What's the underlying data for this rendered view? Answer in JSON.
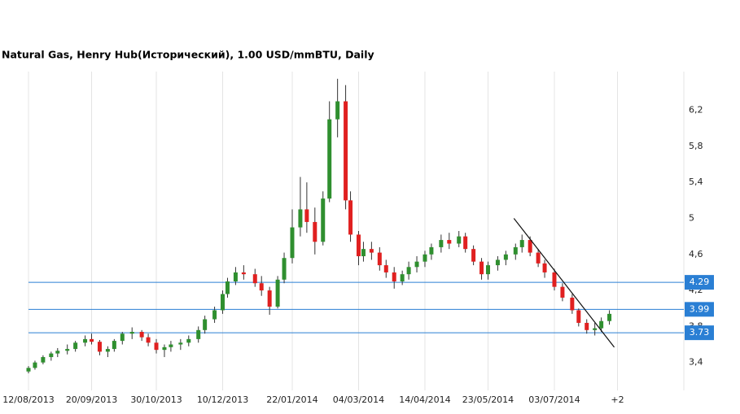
{
  "chart_data": {
    "type": "candlestick",
    "title": "Natural Gas, Henry Hub(Исторический), 1.00 USD/mmBTU, Daily",
    "x": [
      "12/08/2013",
      "16/08/2013",
      "21/08/2013",
      "26/08/2013",
      "30/08/2013",
      "05/09/2013",
      "10/09/2013",
      "16/09/2013",
      "20/09/2013",
      "25/09/2013",
      "30/09/2013",
      "04/10/2013",
      "09/10/2013",
      "15/10/2013",
      "21/10/2013",
      "25/10/2013",
      "30/10/2013",
      "04/11/2013",
      "08/11/2013",
      "14/11/2013",
      "19/11/2013",
      "25/11/2013",
      "29/11/2013",
      "05/12/2013",
      "10/12/2013",
      "13/12/2013",
      "18/12/2013",
      "23/12/2013",
      "30/12/2013",
      "03/01/2014",
      "08/01/2014",
      "13/01/2014",
      "17/01/2014",
      "22/01/2014",
      "27/01/2014",
      "31/01/2014",
      "05/02/2014",
      "10/02/2014",
      "14/02/2014",
      "19/02/2014",
      "24/02/2014",
      "27/02/2014",
      "04/03/2014",
      "07/03/2014",
      "12/03/2014",
      "17/03/2014",
      "21/03/2014",
      "26/03/2014",
      "31/03/2014",
      "04/04/2014",
      "09/04/2014",
      "14/04/2014",
      "18/04/2014",
      "24/04/2014",
      "29/04/2014",
      "05/05/2014",
      "09/05/2014",
      "14/05/2014",
      "19/05/2014",
      "23/05/2014",
      "29/05/2014",
      "03/06/2014",
      "09/06/2014",
      "13/06/2014",
      "18/06/2014",
      "23/06/2014",
      "27/06/2014",
      "03/07/2014",
      "08/07/2014",
      "14/07/2014",
      "18/07/2014",
      "23/07/2014",
      "28/07/2014",
      "01/08/2014",
      "06/08/2014"
    ],
    "open": [
      3.3,
      3.34,
      3.4,
      3.46,
      3.5,
      3.53,
      3.55,
      3.62,
      3.66,
      3.63,
      3.52,
      3.55,
      3.64,
      3.72,
      3.74,
      3.68,
      3.62,
      3.54,
      3.57,
      3.6,
      3.62,
      3.66,
      3.76,
      3.88,
      3.98,
      4.16,
      4.3,
      4.4,
      4.38,
      4.28,
      4.2,
      4.02,
      4.32,
      4.56,
      4.9,
      5.1,
      4.96,
      4.74,
      5.22,
      6.1,
      6.3,
      5.2,
      4.82,
      4.58,
      4.66,
      4.62,
      4.48,
      4.4,
      4.3,
      4.38,
      4.46,
      4.52,
      4.6,
      4.68,
      4.76,
      4.72,
      4.8,
      4.66,
      4.52,
      4.38,
      4.48,
      4.54,
      4.6,
      4.68,
      4.76,
      4.62,
      4.5,
      4.4,
      4.24,
      4.12,
      3.98,
      3.84,
      3.76,
      3.78,
      3.86
    ],
    "high": [
      3.36,
      3.42,
      3.48,
      3.52,
      3.56,
      3.6,
      3.64,
      3.7,
      3.72,
      3.65,
      3.58,
      3.66,
      3.74,
      3.79,
      3.76,
      3.72,
      3.66,
      3.6,
      3.64,
      3.66,
      3.7,
      3.8,
      3.92,
      4.02,
      4.2,
      4.34,
      4.46,
      4.48,
      4.44,
      4.36,
      4.24,
      4.36,
      4.62,
      5.1,
      5.46,
      5.4,
      5.12,
      5.3,
      6.3,
      6.55,
      6.48,
      5.3,
      4.86,
      4.74,
      4.74,
      4.68,
      4.54,
      4.46,
      4.42,
      4.52,
      4.58,
      4.64,
      4.72,
      4.82,
      4.84,
      4.86,
      4.84,
      4.7,
      4.56,
      4.52,
      4.58,
      4.64,
      4.72,
      4.82,
      4.8,
      4.66,
      4.54,
      4.44,
      4.28,
      4.16,
      4.0,
      3.88,
      3.84,
      3.9,
      3.98
    ],
    "low": [
      3.28,
      3.32,
      3.38,
      3.42,
      3.46,
      3.49,
      3.52,
      3.58,
      3.6,
      3.48,
      3.46,
      3.52,
      3.6,
      3.66,
      3.64,
      3.58,
      3.5,
      3.46,
      3.52,
      3.54,
      3.58,
      3.62,
      3.72,
      3.84,
      3.94,
      4.12,
      4.26,
      4.32,
      4.24,
      4.14,
      3.93,
      4.0,
      4.28,
      4.5,
      4.8,
      4.84,
      4.6,
      4.7,
      5.18,
      5.9,
      5.1,
      4.74,
      4.48,
      4.52,
      4.54,
      4.42,
      4.34,
      4.22,
      4.26,
      4.32,
      4.4,
      4.46,
      4.54,
      4.62,
      4.66,
      4.68,
      4.62,
      4.48,
      4.32,
      4.32,
      4.42,
      4.48,
      4.54,
      4.62,
      4.58,
      4.46,
      4.34,
      4.2,
      4.08,
      3.94,
      3.8,
      3.72,
      3.7,
      3.74,
      3.82
    ],
    "close": [
      3.34,
      3.4,
      3.46,
      3.5,
      3.53,
      3.55,
      3.62,
      3.66,
      3.63,
      3.52,
      3.55,
      3.64,
      3.72,
      3.74,
      3.68,
      3.62,
      3.54,
      3.57,
      3.6,
      3.62,
      3.66,
      3.76,
      3.88,
      3.98,
      4.16,
      4.3,
      4.4,
      4.38,
      4.28,
      4.2,
      4.02,
      4.32,
      4.56,
      4.9,
      5.1,
      4.96,
      4.74,
      5.22,
      6.1,
      6.3,
      5.2,
      4.82,
      4.58,
      4.66,
      4.62,
      4.48,
      4.4,
      4.3,
      4.38,
      4.46,
      4.52,
      4.6,
      4.68,
      4.76,
      4.72,
      4.8,
      4.66,
      4.52,
      4.38,
      4.48,
      4.54,
      4.6,
      4.68,
      4.76,
      4.62,
      4.5,
      4.4,
      4.24,
      4.12,
      3.98,
      3.84,
      3.76,
      3.78,
      3.86,
      3.94
    ],
    "up_color": "#2f8f2f",
    "down_color": "#e02020",
    "xlim": [
      "12/08/2013",
      "21/09/2014"
    ],
    "xticks": [
      "12/08/2013",
      "20/09/2013",
      "30/10/2013",
      "10/12/2013",
      "22/01/2014",
      "04/03/2014",
      "14/04/2014",
      "23/05/2014",
      "03/07/2014",
      {
        "value": "11/08/2014",
        "label": "+2"
      }
    ],
    "ylim": [
      3.09,
      6.63
    ],
    "yticks": [
      {
        "value": 3.4,
        "label": "3,4"
      },
      {
        "value": 3.8,
        "label": "3,8"
      },
      {
        "value": 4.2,
        "label": "4,2"
      },
      {
        "value": 4.6,
        "label": "4,6"
      },
      {
        "value": 5,
        "label": "5"
      },
      {
        "value": 5.4,
        "label": "5,4"
      },
      {
        "value": 5.8,
        "label": "5,8"
      },
      {
        "value": 6.2,
        "label": "6,2"
      }
    ],
    "grid": "x",
    "levels": [
      4.29,
      3.99,
      3.73
    ],
    "level_color": "#2a7fd4",
    "trendline": {
      "from": [
        "08/06/2014",
        5.0
      ],
      "to": [
        "09/08/2014",
        3.57
      ]
    }
  }
}
